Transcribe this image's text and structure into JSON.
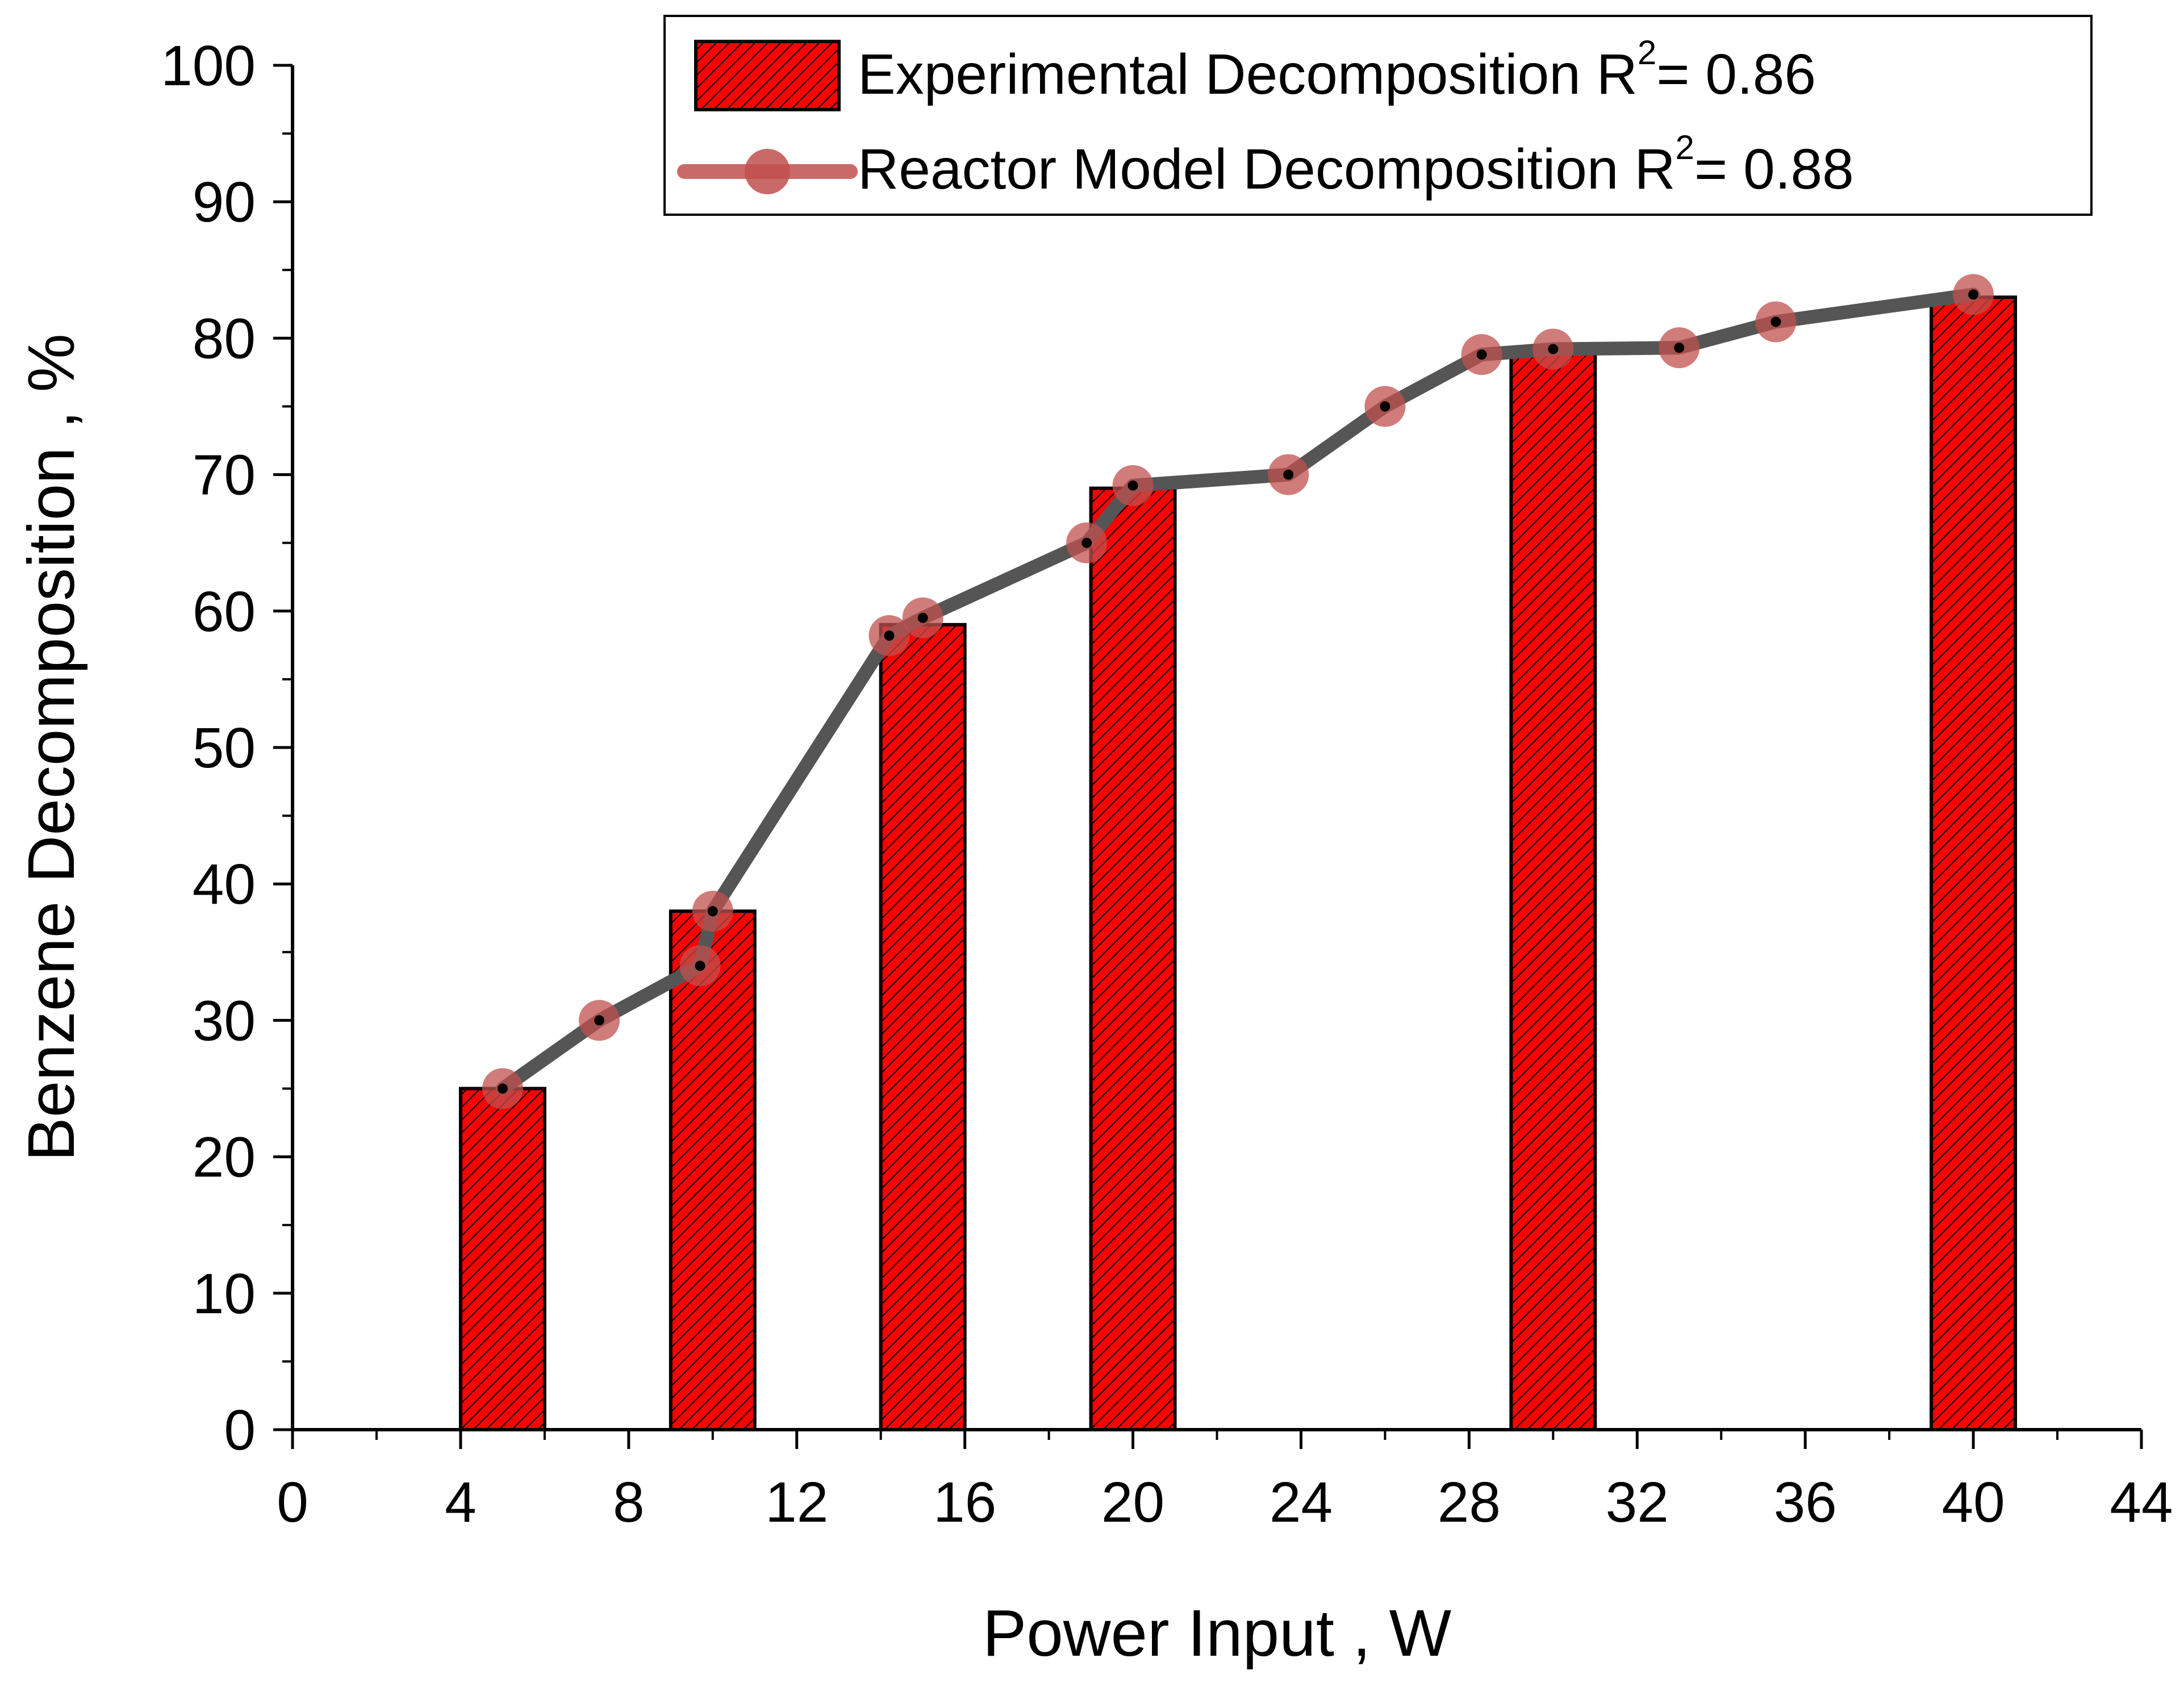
{
  "chart_data": {
    "type": "bar+line",
    "xlabel": "Power Input , W",
    "ylabel": "Benzene Decomposition , %",
    "xlim": [
      0,
      44
    ],
    "ylim": [
      0,
      100
    ],
    "x_ticks": [
      0,
      4,
      8,
      12,
      16,
      20,
      24,
      28,
      32,
      36,
      40,
      44
    ],
    "y_ticks": [
      0,
      10,
      20,
      30,
      40,
      50,
      60,
      70,
      80,
      90,
      100
    ],
    "grid": false,
    "legend_position": "top-right",
    "bar_series": {
      "name": "Experimental Decomposition",
      "r2_label": "R",
      "r2_exp": "2",
      "r2_value": "= 0.86",
      "fill_color": "#ff0000",
      "hatch": "diagonal",
      "x": [
        5,
        10,
        15,
        20,
        30,
        40
      ],
      "values": [
        25,
        38,
        59,
        69,
        79,
        83
      ]
    },
    "line_series": {
      "name": "Reactor Model Decomposition",
      "r2_label": "R",
      "r2_exp": "2",
      "r2_value": "= 0.88",
      "line_color": "#555555",
      "marker_color": "#c0504d",
      "points": [
        [
          5,
          25
        ],
        [
          7.3,
          30
        ],
        [
          9.7,
          34
        ],
        [
          10,
          38
        ],
        [
          14.2,
          58.2
        ],
        [
          15,
          59.5
        ],
        [
          18.9,
          65
        ],
        [
          20,
          69.2
        ],
        [
          23.7,
          70
        ],
        [
          26,
          75
        ],
        [
          28.3,
          78.8
        ],
        [
          30,
          79.2
        ],
        [
          33,
          79.3
        ],
        [
          35.3,
          81.2
        ],
        [
          40,
          83.2
        ]
      ]
    }
  }
}
